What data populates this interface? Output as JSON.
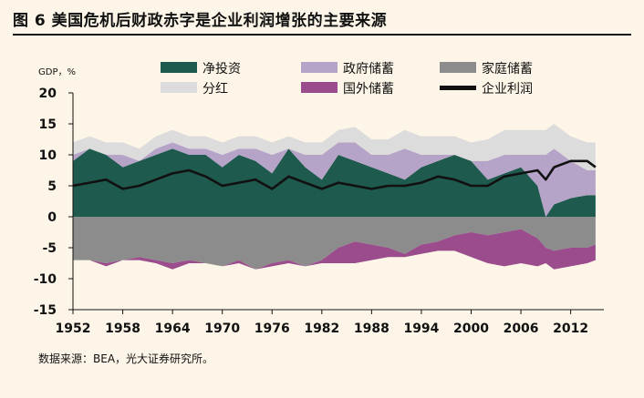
{
  "title": "图 6  美国危机后财政赤字是企业利润增张的主要来源",
  "source": "数据来源：BEA，光大证券研究所。",
  "chart_data": {
    "type": "area",
    "y_unit_label": "GDP，%",
    "ylim": [
      -15,
      20
    ],
    "yticks": [
      20,
      15,
      10,
      5,
      0,
      -5,
      -10,
      -15
    ],
    "xlim": [
      1952,
      2016
    ],
    "xticks": [
      1952,
      1958,
      1964,
      1970,
      1976,
      1982,
      1988,
      1994,
      2000,
      2006,
      2012
    ],
    "legend_position": "top",
    "x": [
      1952,
      1954,
      1956,
      1958,
      1960,
      1962,
      1964,
      1966,
      1968,
      1970,
      1972,
      1974,
      1976,
      1978,
      1980,
      1982,
      1984,
      1986,
      1988,
      1990,
      1992,
      1994,
      1996,
      1998,
      2000,
      2002,
      2004,
      2006,
      2008,
      2009,
      2010,
      2012,
      2014,
      2015
    ],
    "series": [
      {
        "name": "净投资",
        "color": "#1f5a4e",
        "values": [
          9,
          11,
          10,
          8,
          9,
          10,
          11,
          10,
          10,
          8,
          10,
          9,
          7,
          11,
          8,
          6,
          10,
          9,
          8,
          7,
          6,
          8,
          9,
          10,
          9,
          6,
          7,
          8,
          5,
          0,
          2,
          3,
          3.5,
          3.5
        ]
      },
      {
        "name": "分红",
        "color": "#dcdcdc",
        "values": [
          2,
          2,
          2,
          2,
          2,
          2,
          2,
          2,
          2,
          2,
          2,
          2,
          2,
          2,
          2,
          2,
          2,
          2.5,
          2.5,
          2.5,
          3,
          3,
          3,
          3,
          3,
          3.5,
          4,
          4,
          4,
          4,
          4,
          4,
          4.5,
          4.5
        ]
      },
      {
        "name": "政府储蓄",
        "color": "#b6a3c8",
        "values": [
          1,
          0,
          0,
          2,
          0,
          1,
          1,
          1,
          1,
          2,
          1,
          2,
          3,
          0,
          2,
          4,
          2,
          3,
          2,
          3,
          5,
          2,
          1,
          -1,
          -2,
          3,
          3,
          2,
          5,
          10,
          9,
          6,
          4,
          4
        ]
      },
      {
        "name": "国外储蓄",
        "color": "#9a4c8c",
        "values": [
          0,
          0,
          -0.5,
          0,
          -0.5,
          -0.5,
          -1,
          -0.5,
          0,
          0,
          0.5,
          0,
          0.5,
          0.5,
          0,
          0.5,
          2.5,
          3.5,
          2.5,
          1.5,
          0.5,
          1.5,
          1.5,
          2.5,
          4,
          4.5,
          5.5,
          5.5,
          4.5,
          2.5,
          3,
          3,
          2.5,
          2.5
        ]
      },
      {
        "name": "家庭储蓄",
        "color": "#8c8c8c",
        "values": [
          -7,
          -7,
          -7.5,
          -7,
          -6.5,
          -7,
          -7.5,
          -7,
          -7.5,
          -8,
          -7,
          -8.5,
          -7.5,
          -7,
          -8,
          -7,
          -5,
          -4,
          -4.5,
          -5,
          -6,
          -4.5,
          -4,
          -3,
          -2.5,
          -3,
          -2.5,
          -2,
          -3.5,
          -5,
          -5.5,
          -5,
          -5,
          -4.5
        ]
      },
      {
        "name": "企业利润",
        "color": "#111111",
        "values": [
          5,
          5.5,
          6,
          4.5,
          5,
          6,
          7,
          7.5,
          6.5,
          5,
          5.5,
          6,
          4.5,
          6.5,
          5.5,
          4.5,
          5.5,
          5,
          4.5,
          5,
          5,
          5.5,
          6.5,
          6,
          5,
          5,
          6.5,
          7,
          7.5,
          6,
          8,
          9,
          9,
          8
        ]
      }
    ]
  }
}
